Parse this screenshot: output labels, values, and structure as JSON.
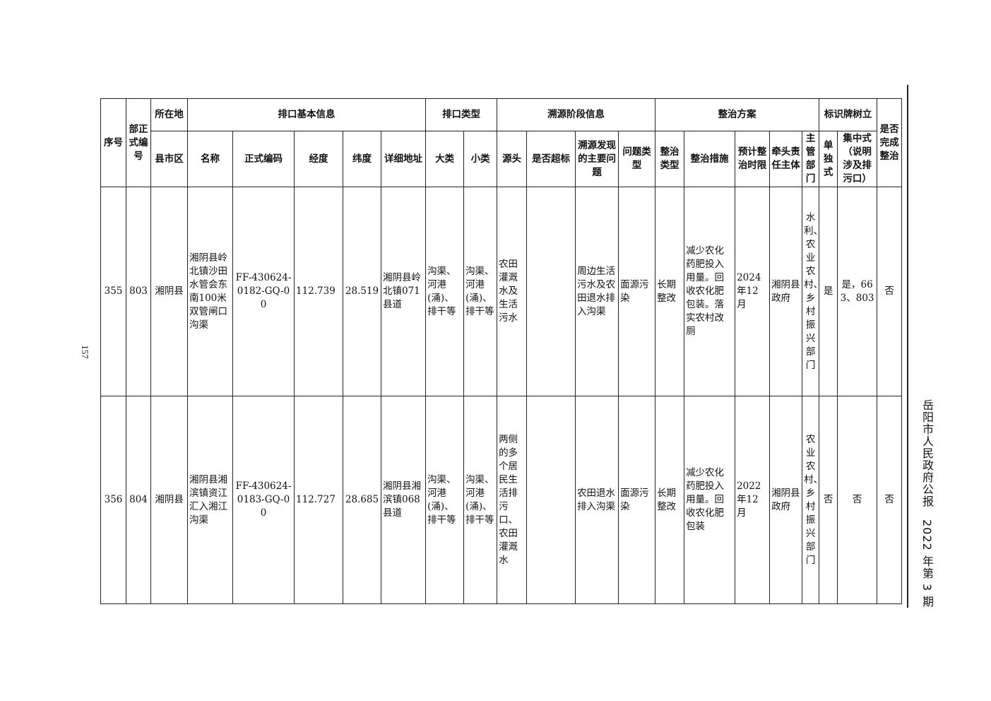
{
  "page_number": "157",
  "journal_title": "岳阳市人民政府公报　2022 年第 3 期",
  "table": {
    "header_row1": [
      {
        "text": "序号",
        "rowspan": 2,
        "colspan": 1
      },
      {
        "text": "部正式编号",
        "rowspan": 2,
        "colspan": 1
      },
      {
        "text": "所在地",
        "rowspan": 1,
        "colspan": 1
      },
      {
        "text": "排口基本信息",
        "rowspan": 1,
        "colspan": 5
      },
      {
        "text": "排口类型",
        "rowspan": 1,
        "colspan": 2
      },
      {
        "text": "溯源阶段信息",
        "rowspan": 1,
        "colspan": 4
      },
      {
        "text": "整治方案",
        "rowspan": 1,
        "colspan": 5
      },
      {
        "text": "标识牌树立",
        "rowspan": 1,
        "colspan": 2
      },
      {
        "text": "是否完成整治",
        "rowspan": 2,
        "colspan": 1
      }
    ],
    "header_row2": [
      "县市区",
      "名称",
      "正式编码",
      "经度",
      "纬度",
      "详细地址",
      "大类",
      "小类",
      "源头",
      "是否超标",
      "溯源发现的主要问题",
      "问题类型",
      "整治类型",
      "整治措施",
      "预计整治时限",
      "牵头责任主体",
      "主管部门",
      "单独式",
      "集中式（说明涉及排污口）"
    ],
    "rows": [
      [
        "355",
        "803",
        "湘阴县",
        "湘阴县岭北镇沙田水管会东南100米双管闸口沟渠",
        "FF-430624-0182-GQ-00",
        "112.739",
        "28.519",
        "湘阴县岭北镇071县道",
        "沟渠、河港(涌)、排干等",
        "沟渠、河港(涌)、排干等",
        "农田灌溉水及生活污水",
        "",
        "周边生活污水及农田退水排入沟渠",
        "面源污染",
        "长期整改",
        "减少农化药肥投入用量。回收农化肥包装。落实农村改厕",
        "2024年12月",
        "湘阴县政府",
        "水利、农业农村、乡村振兴部门",
        "是",
        "是，663、803",
        "否"
      ],
      [
        "356",
        "804",
        "湘阴县",
        "湘阴县湘滨镇资江汇入湘江沟渠",
        "FF-430624-0183-GQ-00",
        "112.727",
        "28.685",
        "湘阴县湘滨镇068县道",
        "沟渠、河港(涌)、排干等",
        "沟渠、河港(涌)、排干等",
        "两侧的多个居民生活排污口、农田灌溉水",
        "",
        "农田退水排入沟渠",
        "面源污染",
        "长期整改",
        "减少农化药肥投入用量。回收农化肥包装",
        "2022年12月",
        "湘阴县政府",
        "农业农村、乡村振兴部门",
        "否",
        "否",
        "否"
      ]
    ]
  }
}
